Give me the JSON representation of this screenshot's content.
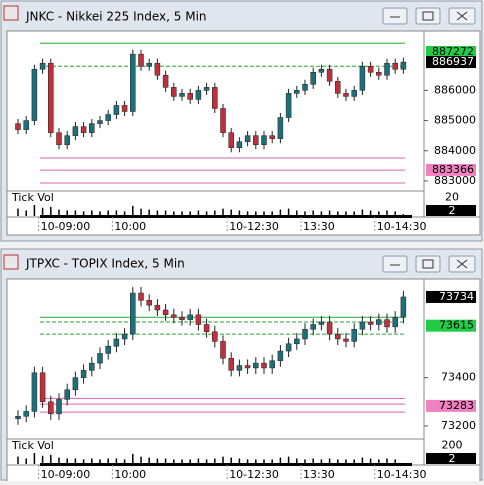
{
  "chart_data": [
    {
      "type": "candlestick",
      "title": "JNKC - Nikkei 225 Index, 5 Min",
      "categories": [
        null,
        null,
        null,
        "10-09:00",
        null,
        null,
        null,
        null,
        null,
        null,
        null,
        null,
        "10:00",
        null,
        null,
        null,
        null,
        null,
        null,
        null,
        null,
        null,
        null,
        null,
        null,
        null,
        "10-12:30",
        null,
        null,
        null,
        null,
        null,
        null,
        null,
        null,
        "13:30",
        null,
        null,
        null,
        null,
        null,
        null,
        null,
        null,
        "10-14:30",
        null,
        null,
        null
      ],
      "open": [
        884900,
        884700,
        885000,
        886700,
        886900,
        884600,
        884200,
        884500,
        884800,
        884600,
        884900,
        885000,
        885200,
        885500,
        885300,
        887200,
        886800,
        886900,
        886500,
        886100,
        885800,
        885900,
        885700,
        886000,
        886100,
        885400,
        884600,
        884100,
        884300,
        884500,
        884200,
        884500,
        884400,
        885100,
        885900,
        886000,
        886200,
        886600,
        886700,
        886300,
        885900,
        885800,
        886000,
        886800,
        886600,
        886500,
        886900,
        886700
      ],
      "high": [
        885050,
        885150,
        886850,
        887050,
        887050,
        884750,
        884650,
        884950,
        884950,
        885050,
        885150,
        885350,
        885650,
        885650,
        887350,
        887350,
        887050,
        887050,
        886650,
        886250,
        886050,
        886050,
        886150,
        886250,
        886250,
        885550,
        884750,
        884450,
        884650,
        884650,
        884650,
        884650,
        885250,
        886050,
        886150,
        886350,
        886750,
        886850,
        886850,
        886450,
        886050,
        886150,
        886950,
        886950,
        886750,
        887050,
        887050,
        887087
      ],
      "low": [
        884550,
        884550,
        884850,
        886550,
        884450,
        884050,
        884050,
        884350,
        884450,
        884450,
        884750,
        884850,
        885050,
        885150,
        885150,
        886650,
        886650,
        886350,
        885950,
        885650,
        885650,
        885550,
        885550,
        885850,
        885250,
        884450,
        883950,
        883950,
        884150,
        884050,
        884050,
        884250,
        884250,
        884950,
        885750,
        885850,
        886050,
        886450,
        886150,
        885750,
        885650,
        885650,
        885850,
        886450,
        886350,
        886350,
        886550,
        886550
      ],
      "close": [
        884700,
        885000,
        886700,
        886900,
        884600,
        884200,
        884500,
        884800,
        884600,
        884900,
        885000,
        885200,
        885500,
        885300,
        887200,
        886800,
        886900,
        886500,
        886100,
        885800,
        885900,
        885700,
        886000,
        886100,
        885400,
        884600,
        884100,
        884300,
        884500,
        884200,
        884500,
        884400,
        885100,
        885900,
        886000,
        886200,
        886600,
        886700,
        886300,
        885900,
        885800,
        886000,
        886800,
        886600,
        886500,
        886900,
        886700,
        886937
      ],
      "up_color": "#1f6f7a",
      "down_color": "#c0303c",
      "ylim": [
        882700,
        887900
      ],
      "yticks": [
        883000,
        884000,
        885000,
        886000
      ],
      "levels": [
        {
          "value": 887560,
          "color": "#22aa33",
          "dashed": false
        },
        {
          "value": 886800,
          "color": "#22aa33",
          "dashed": true
        },
        {
          "value": 883760,
          "color": "#e060b0",
          "dashed": false
        },
        {
          "value": 883360,
          "color": "#e060b0",
          "dashed": false
        },
        {
          "value": 882930,
          "color": "#e060b0",
          "dashed": false
        }
      ],
      "price_labels": [
        {
          "value": 887272,
          "color": "#22cc44",
          "text_color": "#000000"
        },
        {
          "value": 886937,
          "color": "#000000",
          "text_color": "#ffffff"
        },
        {
          "value": 883366,
          "color": "#f080c0",
          "text_color": "#000000"
        }
      ],
      "volume_label": "Tick Vol",
      "volume": [
        8,
        6,
        12,
        9,
        10,
        7,
        6,
        6,
        5,
        6,
        5,
        6,
        6,
        5,
        11,
        8,
        7,
        6,
        6,
        5,
        5,
        5,
        6,
        5,
        6,
        8,
        7,
        6,
        5,
        5,
        5,
        5,
        7,
        8,
        6,
        5,
        6,
        5,
        6,
        5,
        5,
        5,
        7,
        6,
        5,
        6,
        5,
        2
      ],
      "volume_ylim": [
        0,
        25
      ],
      "volume_ticks": [
        20
      ]
    },
    {
      "type": "candlestick",
      "title": "JTPXC - TOPIX Index, 5 Min",
      "categories": [
        null,
        null,
        null,
        "10-09:00",
        null,
        null,
        null,
        null,
        null,
        null,
        null,
        null,
        "10:00",
        null,
        null,
        null,
        null,
        null,
        null,
        null,
        null,
        null,
        null,
        null,
        null,
        null,
        "10-12:30",
        null,
        null,
        null,
        null,
        null,
        null,
        null,
        null,
        "13:30",
        null,
        null,
        null,
        null,
        null,
        null,
        null,
        null,
        "10-14:30",
        null,
        null,
        null
      ],
      "open": [
        73230,
        73240,
        73260,
        73420,
        73300,
        73250,
        73310,
        73350,
        73400,
        73430,
        73460,
        73500,
        73530,
        73560,
        73580,
        73750,
        73720,
        73700,
        73680,
        73660,
        73650,
        73640,
        73660,
        73620,
        73590,
        73550,
        73480,
        73430,
        73450,
        73440,
        73460,
        73440,
        73470,
        73510,
        73540,
        73560,
        73600,
        73620,
        73630,
        73580,
        73560,
        73550,
        73600,
        73630,
        73620,
        73640,
        73610,
        73650
      ],
      "high": [
        73265,
        73285,
        73445,
        73445,
        73325,
        73335,
        73375,
        73425,
        73455,
        73485,
        73525,
        73555,
        73585,
        73605,
        73775,
        73775,
        73745,
        73725,
        73705,
        73685,
        73675,
        73685,
        73685,
        73645,
        73615,
        73575,
        73505,
        73475,
        73475,
        73485,
        73485,
        73495,
        73535,
        73565,
        73585,
        73625,
        73645,
        73655,
        73655,
        73605,
        73585,
        73625,
        73655,
        73655,
        73665,
        73665,
        73675,
        73759
      ],
      "low": [
        73205,
        73215,
        73235,
        73275,
        73225,
        73225,
        73285,
        73325,
        73375,
        73405,
        73435,
        73475,
        73505,
        73535,
        73555,
        73695,
        73675,
        73655,
        73635,
        73625,
        73615,
        73615,
        73595,
        73565,
        73525,
        73455,
        73405,
        73405,
        73415,
        73415,
        73415,
        73415,
        73445,
        73485,
        73515,
        73535,
        73575,
        73595,
        73555,
        73535,
        73525,
        73525,
        73575,
        73595,
        73595,
        73585,
        73585,
        73625
      ],
      "close": [
        73240,
        73260,
        73420,
        73300,
        73250,
        73310,
        73350,
        73400,
        73430,
        73460,
        73500,
        73530,
        73560,
        73580,
        73750,
        73720,
        73700,
        73680,
        73660,
        73650,
        73640,
        73660,
        73620,
        73590,
        73550,
        73480,
        73430,
        73450,
        73440,
        73460,
        73440,
        73470,
        73510,
        73540,
        73560,
        73600,
        73620,
        73630,
        73580,
        73560,
        73550,
        73600,
        73630,
        73620,
        73640,
        73610,
        73650,
        73734
      ],
      "up_color": "#1f6f7a",
      "down_color": "#c0303c",
      "ylim": [
        73150,
        73800
      ],
      "yticks": [
        73200,
        73400
      ],
      "levels": [
        {
          "value": 73650,
          "color": "#22aa33",
          "dashed": false
        },
        {
          "value": 73630,
          "color": "#22aa33",
          "dashed": true
        },
        {
          "value": 73580,
          "color": "#22aa33",
          "dashed": true
        },
        {
          "value": 73314,
          "color": "#e060b0",
          "dashed": false
        },
        {
          "value": 73290,
          "color": "#e060b0",
          "dashed": false
        },
        {
          "value": 73257,
          "color": "#e060b0",
          "dashed": false
        }
      ],
      "price_labels": [
        {
          "value": 73734,
          "color": "#000000",
          "text_color": "#ffffff"
        },
        {
          "value": 73615,
          "color": "#22cc44",
          "text_color": "#000000"
        },
        {
          "value": 73283,
          "color": "#f080c0",
          "text_color": "#000000"
        }
      ],
      "volume_label": "Tick Vol",
      "volume": [
        80,
        60,
        120,
        90,
        100,
        70,
        60,
        60,
        50,
        60,
        50,
        60,
        60,
        50,
        110,
        80,
        70,
        60,
        60,
        50,
        50,
        50,
        60,
        50,
        60,
        80,
        70,
        60,
        50,
        50,
        50,
        50,
        70,
        80,
        60,
        50,
        60,
        50,
        60,
        50,
        50,
        50,
        70,
        60,
        50,
        60,
        50,
        2
      ],
      "volume_ylim": [
        0,
        250
      ],
      "volume_ticks": [
        200
      ]
    }
  ]
}
